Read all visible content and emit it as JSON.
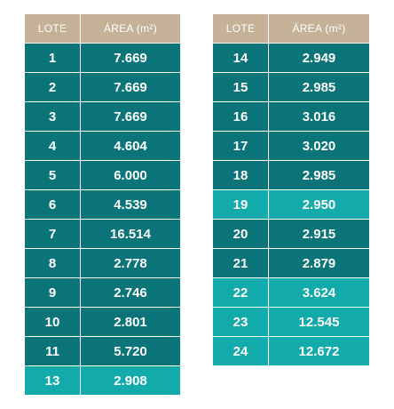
{
  "headers": {
    "lote": "LOTE",
    "area": "ÁREA (m²)"
  },
  "colors": {
    "header": "#c4b197",
    "dark_row": "#0b7478",
    "light_row": "#12aaaa",
    "text": "#ffffff"
  },
  "left_table": [
    {
      "lote": "1",
      "area": "7.669",
      "shade": "dark"
    },
    {
      "lote": "2",
      "area": "7.669",
      "shade": "dark"
    },
    {
      "lote": "3",
      "area": "7.669",
      "shade": "dark"
    },
    {
      "lote": "4",
      "area": "4.604",
      "shade": "dark"
    },
    {
      "lote": "5",
      "area": "6.000",
      "shade": "dark"
    },
    {
      "lote": "6",
      "area": "4.539",
      "shade": "dark"
    },
    {
      "lote": "7",
      "area": "16.514",
      "shade": "dark"
    },
    {
      "lote": "8",
      "area": "2.778",
      "shade": "dark"
    },
    {
      "lote": "9",
      "area": "2.746",
      "shade": "dark"
    },
    {
      "lote": "10",
      "area": "2.801",
      "shade": "dark"
    },
    {
      "lote": "11",
      "area": "5.720",
      "shade": "dark"
    },
    {
      "lote": "13",
      "area": "2.908",
      "shade": "light"
    }
  ],
  "right_table": [
    {
      "lote": "14",
      "area": "2.949",
      "shade": "dark"
    },
    {
      "lote": "15",
      "area": "2.985",
      "shade": "dark"
    },
    {
      "lote": "16",
      "area": "3.016",
      "shade": "dark"
    },
    {
      "lote": "17",
      "area": "3.020",
      "shade": "dark"
    },
    {
      "lote": "18",
      "area": "2.985",
      "shade": "dark"
    },
    {
      "lote": "19",
      "area": "2.950",
      "shade": "light"
    },
    {
      "lote": "20",
      "area": "2.915",
      "shade": "dark"
    },
    {
      "lote": "21",
      "area": "2.879",
      "shade": "dark"
    },
    {
      "lote": "22",
      "area": "3.624",
      "shade": "light"
    },
    {
      "lote": "23",
      "area": "12.545",
      "shade": "light"
    },
    {
      "lote": "24",
      "area": "12.672",
      "shade": "light"
    }
  ]
}
